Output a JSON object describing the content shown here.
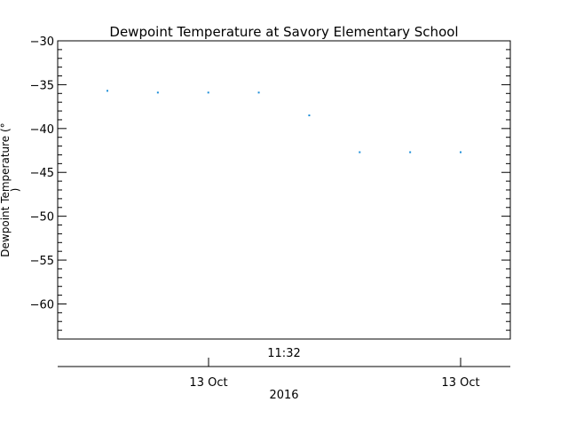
{
  "chart_data": {
    "type": "scatter",
    "title": "Dewpoint Temperature at Savory Elementary School",
    "ylabel_line1": "Dewpoint Temperature (°",
    "ylabel_line2": ")",
    "ylim": [
      -64,
      -30
    ],
    "yticks": [
      -30,
      -35,
      -40,
      -45,
      -50,
      -55,
      -60
    ],
    "x_center_label": "11:32",
    "x_axis2_ticks": [
      "13 Oct",
      "13 Oct"
    ],
    "x_axis2_year": "2016",
    "point_color": "#1f8fd8",
    "series": [
      {
        "values": [
          -35.7,
          -35.9,
          -35.9,
          -35.9,
          -38.5,
          -42.7,
          -42.7,
          -42.7
        ]
      }
    ]
  }
}
